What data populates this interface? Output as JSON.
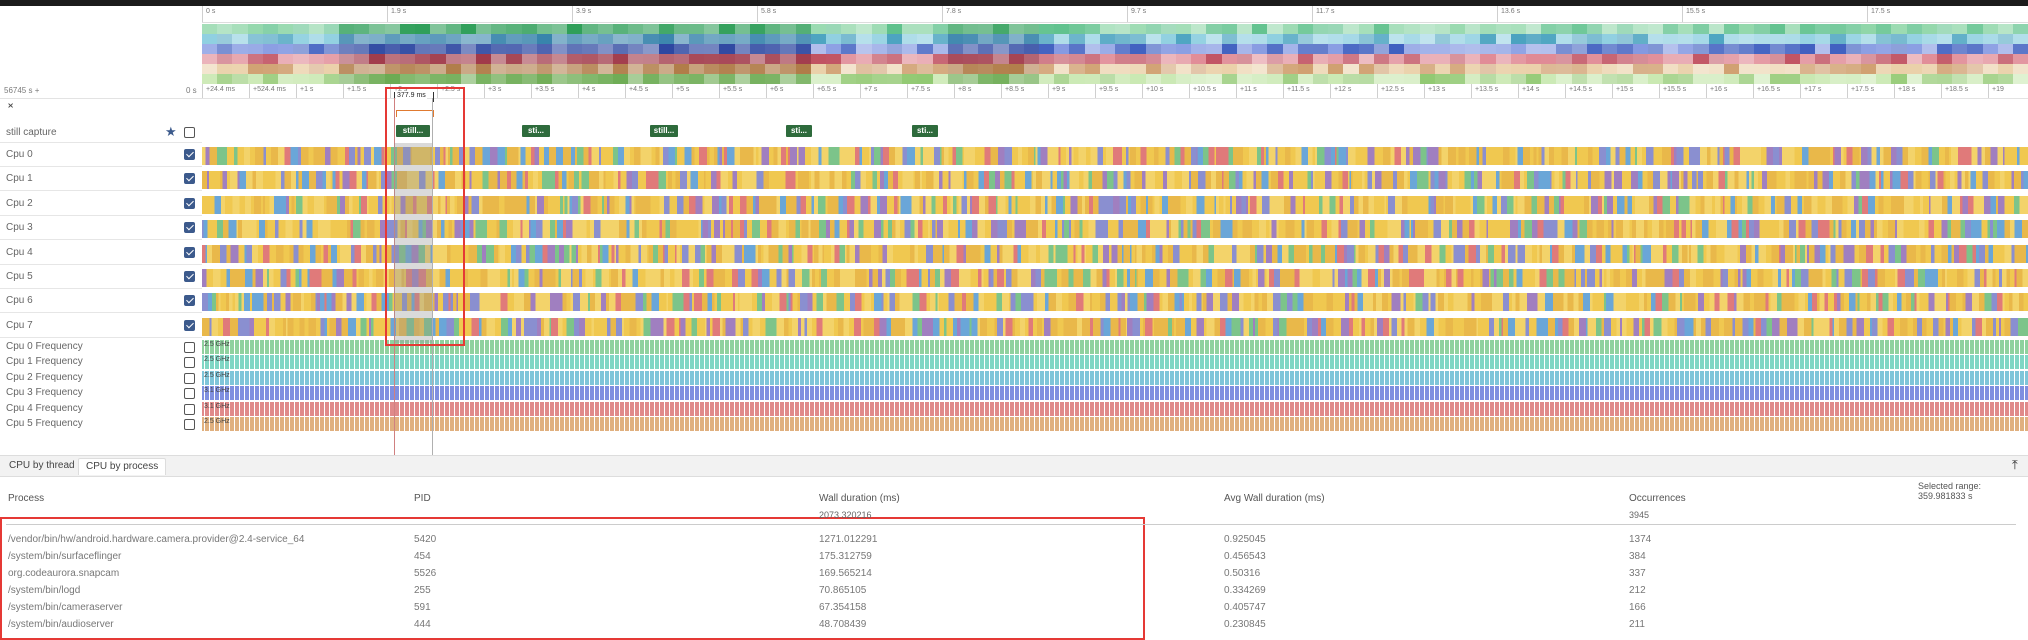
{
  "overview_ruler": [
    "0 s",
    "1.9 s",
    "3.9 s",
    "5.8 s",
    "7.8 s",
    "9.7 s",
    "11.7 s",
    "13.6 s",
    "15.5 s",
    "17.5 s"
  ],
  "header": {
    "timestamp": "56745 s +",
    "zero": "0 s",
    "selection_label": "377.9 ms"
  },
  "time_ruler": [
    "+24.4 ms",
    "+524.4 ms",
    "+1 s",
    "+1.5 s",
    "+2 s",
    "+2.5 s",
    "+3 s",
    "+3.5 s",
    "+4 s",
    "+4.5 s",
    "+5 s",
    "+5.5 s",
    "+6 s",
    "+6.5 s",
    "+7 s",
    "+7.5 s",
    "+8 s",
    "+8.5 s",
    "+9 s",
    "+9.5 s",
    "+10 s",
    "+10.5 s",
    "+11 s",
    "+11.5 s",
    "+12 s",
    "+12.5 s",
    "+13 s",
    "+13.5 s",
    "+14 s",
    "+14.5 s",
    "+15 s",
    "+15.5 s",
    "+16 s",
    "+16.5 s",
    "+17 s",
    "+17.5 s",
    "+18 s",
    "+18.5 s",
    "+19"
  ],
  "still_capture": {
    "label": "still capture",
    "slices": [
      "still...",
      "sti...",
      "still...",
      "sti...",
      "sti..."
    ]
  },
  "cpu_tracks": [
    {
      "label": "Cpu 0",
      "checked": true
    },
    {
      "label": "Cpu 1",
      "checked": true
    },
    {
      "label": "Cpu 2",
      "checked": true
    },
    {
      "label": "Cpu 3",
      "checked": true
    },
    {
      "label": "Cpu 4",
      "checked": true
    },
    {
      "label": "Cpu 5",
      "checked": true
    },
    {
      "label": "Cpu 6",
      "checked": true
    },
    {
      "label": "Cpu 7",
      "checked": true
    }
  ],
  "freq_tracks": [
    {
      "label": "Cpu 0 Frequency",
      "value": "2.5 GHz",
      "color": "#8fd19e"
    },
    {
      "label": "Cpu 1 Frequency",
      "value": "2.5 GHz",
      "color": "#7fd6c4"
    },
    {
      "label": "Cpu 2 Frequency",
      "value": "2.5 GHz",
      "color": "#7fc5d9"
    },
    {
      "label": "Cpu 3 Frequency",
      "value": "3.1 GHz",
      "color": "#7f8fe0"
    },
    {
      "label": "Cpu 4 Frequency",
      "value": "3.1 GHz",
      "color": "#e08a8a"
    },
    {
      "label": "Cpu 5 Frequency",
      "value": "2.5 GHz",
      "color": "#e0b07f"
    }
  ],
  "tabs": [
    "CPU by thread",
    "CPU by process"
  ],
  "selected_range": "Selected range: 359.981833 s",
  "table": {
    "headers": [
      "Process",
      "PID",
      "Wall duration (ms)",
      "Avg Wall duration (ms)",
      "Occurrences"
    ],
    "total_wall": "2073.320216",
    "total_occ": "3945",
    "rows": [
      [
        "/vendor/bin/hw/android.hardware.camera.provider@2.4-service_64",
        "5420",
        "1271.012291",
        "0.925045",
        "1374"
      ],
      [
        "/system/bin/surfaceflinger",
        "454",
        "175.312759",
        "0.456543",
        "384"
      ],
      [
        "org.codeaurora.snapcam",
        "5526",
        "169.565214",
        "0.50316",
        "337"
      ],
      [
        "/system/bin/logd",
        "255",
        "70.865105",
        "0.334269",
        "212"
      ],
      [
        "/system/bin/cameraserver",
        "591",
        "67.354158",
        "0.405747",
        "166"
      ],
      [
        "/system/bin/audioserver",
        "444",
        "48.708439",
        "0.230845",
        "211"
      ]
    ]
  },
  "colors": {
    "cpu_palette": [
      "#f0c850",
      "#e9b84a",
      "#f3d36a",
      "#6aa6d8",
      "#a07fc0",
      "#e07a7a",
      "#7cc48a",
      "#8a8fd0"
    ],
    "highlight": "#e53935",
    "slice_green": "#2e6b3c"
  }
}
